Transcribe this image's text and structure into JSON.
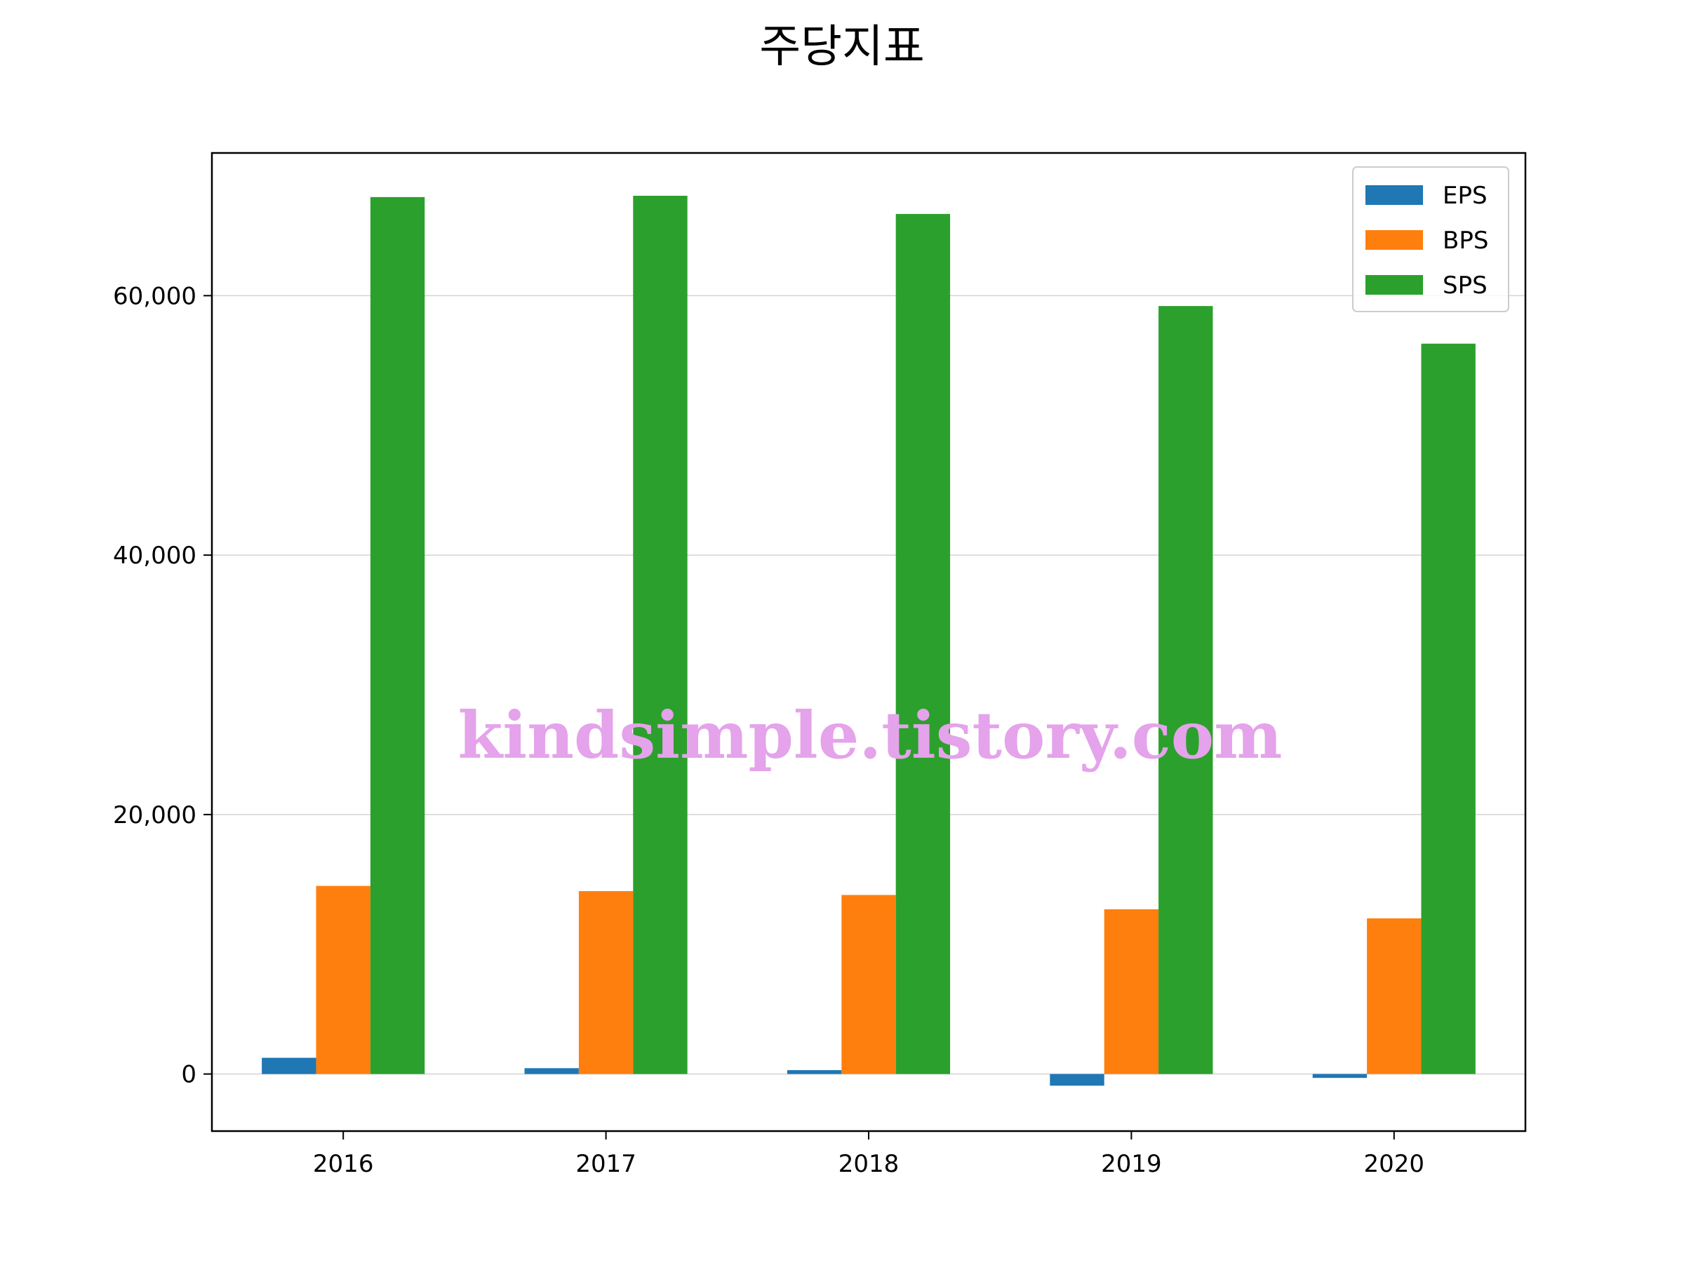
{
  "colors": {
    "eps": "#1f77b4",
    "bps": "#ff7f0e",
    "sps": "#2ca02c",
    "grid": "#d3d3d3",
    "watermark": "#e4a3ea"
  },
  "watermark": "kindsimple.tistory.com",
  "chart_data": {
    "type": "bar",
    "title": "주당지표",
    "xlabel": "",
    "ylabel": "",
    "categories": [
      "2016",
      "2017",
      "2018",
      "2019",
      "2020"
    ],
    "series": [
      {
        "name": "EPS",
        "values": [
          1250,
          450,
          300,
          -900,
          -300
        ]
      },
      {
        "name": "BPS",
        "values": [
          14500,
          14100,
          13800,
          12700,
          12000
        ]
      },
      {
        "name": "SPS",
        "values": [
          67600,
          67700,
          66300,
          59200,
          56300
        ]
      }
    ],
    "ylim": [
      -4400,
      71000
    ],
    "yticks": [
      0,
      20000,
      40000,
      60000
    ],
    "ytick_labels": [
      "0",
      "20,000",
      "40,000",
      "60,000"
    ],
    "grid": "y",
    "legend_position": "top-right"
  }
}
